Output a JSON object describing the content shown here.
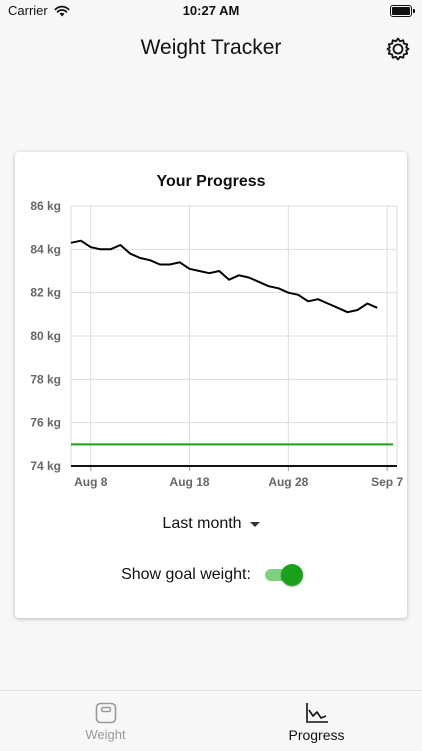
{
  "status_bar": {
    "carrier": "Carrier",
    "time": "10:27 AM"
  },
  "header": {
    "title": "Weight Tracker",
    "settings_icon": "gear-icon"
  },
  "card": {
    "title": "Your Progress",
    "range_label": "Last month",
    "goal_label": "Show goal weight:",
    "goal_toggle_on": true
  },
  "tabs": [
    {
      "label": "Weight",
      "icon": "scale-icon",
      "active": false
    },
    {
      "label": "Progress",
      "icon": "chart-icon",
      "active": true
    }
  ],
  "colors": {
    "goal_line": "#1aa11a",
    "toggle_on": "#1aa11a",
    "weight_line": "#000000"
  },
  "chart_data": {
    "type": "line",
    "title": "Your Progress",
    "x_tick_labels": [
      "Aug 8",
      "Aug 18",
      "Aug 28",
      "Sep 7"
    ],
    "y_tick_labels": [
      "86 kg",
      "84 kg",
      "82 kg",
      "80 kg",
      "78 kg",
      "76 kg",
      "74 kg"
    ],
    "ylim": [
      74,
      86
    ],
    "xlim": [
      "Aug 6",
      "Sep 8"
    ],
    "grid": true,
    "series": [
      {
        "values": [
          {
            "x": "Aug 6",
            "y": 84.3
          },
          {
            "x": "Aug 7",
            "y": 84.4
          },
          {
            "x": "Aug 8",
            "y": 84.1
          },
          {
            "x": "Aug 9",
            "y": 84.0
          },
          {
            "x": "Aug 10",
            "y": 84.0
          },
          {
            "x": "Aug 11",
            "y": 84.2
          },
          {
            "x": "Aug 12",
            "y": 83.8
          },
          {
            "x": "Aug 13",
            "y": 83.6
          },
          {
            "x": "Aug 14",
            "y": 83.5
          },
          {
            "x": "Aug 15",
            "y": 83.3
          },
          {
            "x": "Aug 16",
            "y": 83.3
          },
          {
            "x": "Aug 17",
            "y": 83.4
          },
          {
            "x": "Aug 18",
            "y": 83.1
          },
          {
            "x": "Aug 19",
            "y": 83.0
          },
          {
            "x": "Aug 20",
            "y": 82.9
          },
          {
            "x": "Aug 21",
            "y": 83.0
          },
          {
            "x": "Aug 22",
            "y": 82.6
          },
          {
            "x": "Aug 23",
            "y": 82.8
          },
          {
            "x": "Aug 24",
            "y": 82.7
          },
          {
            "x": "Aug 25",
            "y": 82.5
          },
          {
            "x": "Aug 26",
            "y": 82.3
          },
          {
            "x": "Aug 27",
            "y": 82.2
          },
          {
            "x": "Aug 28",
            "y": 82.0
          },
          {
            "x": "Aug 29",
            "y": 81.9
          },
          {
            "x": "Aug 30",
            "y": 81.6
          },
          {
            "x": "Aug 31",
            "y": 81.7
          },
          {
            "x": "Sep 1",
            "y": 81.5
          },
          {
            "x": "Sep 2",
            "y": 81.3
          },
          {
            "x": "Sep 3",
            "y": 81.1
          },
          {
            "x": "Sep 4",
            "y": 81.2
          },
          {
            "x": "Sep 5",
            "y": 81.5
          },
          {
            "x": "Sep 6",
            "y": 81.3
          }
        ]
      }
    ],
    "goal_weight": 75.0
  }
}
